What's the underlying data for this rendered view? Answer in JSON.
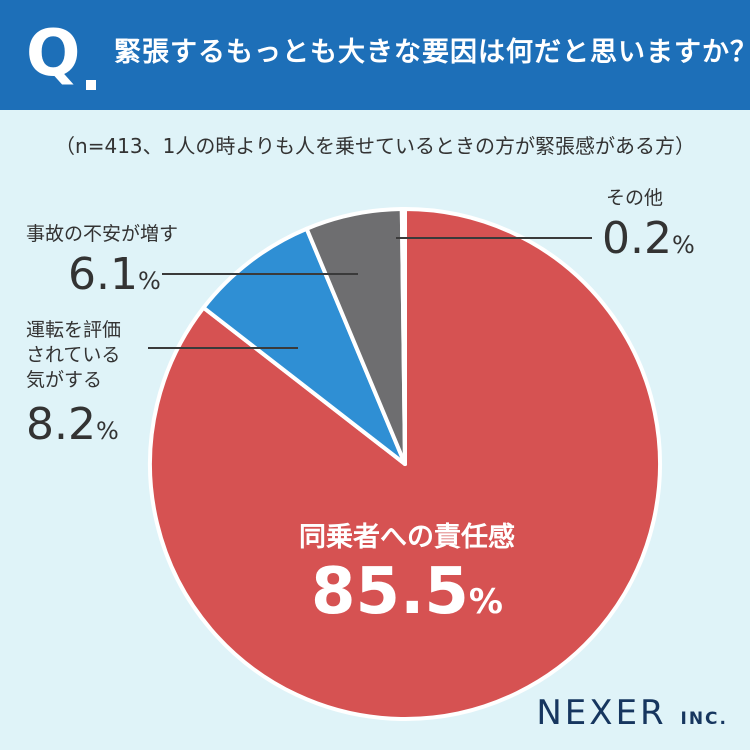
{
  "header": {
    "q_letter": "Q",
    "question": "緊張するもっとも大きな要因は何だと思いますか？"
  },
  "subtitle": "（n=413、1人の時よりも人を乗せているときの方が緊張感がある方）",
  "chart_data": {
    "type": "pie",
    "title": "緊張するもっとも大きな要因は何だと思いますか？",
    "unit": "%",
    "slices": [
      {
        "label": "同乗者への責任感",
        "value": 85.5,
        "display": "85.5",
        "color": "#d65252"
      },
      {
        "label": "運転を評価されている気がする",
        "value": 8.2,
        "display": "8.2",
        "color": "#2f8fd4"
      },
      {
        "label": "事故の不安が増す",
        "value": 6.1,
        "display": "6.1",
        "color": "#6e6e70"
      },
      {
        "label": "その他",
        "value": 0.2,
        "display": "0.2",
        "color": "#a4afb5"
      }
    ]
  },
  "labels": {
    "main_name": "同乗者への責任感",
    "main_value": "85.5",
    "eval_line1": "運転を評価",
    "eval_line2": "されている",
    "eval_line3": "気がする",
    "eval_value": "8.2",
    "accident_name": "事故の不安が増す",
    "accident_value": "6.1",
    "other_name": "その他",
    "other_value": "0.2",
    "pct": "%"
  },
  "logo": {
    "main": "NEXER",
    "suffix": "INC."
  }
}
